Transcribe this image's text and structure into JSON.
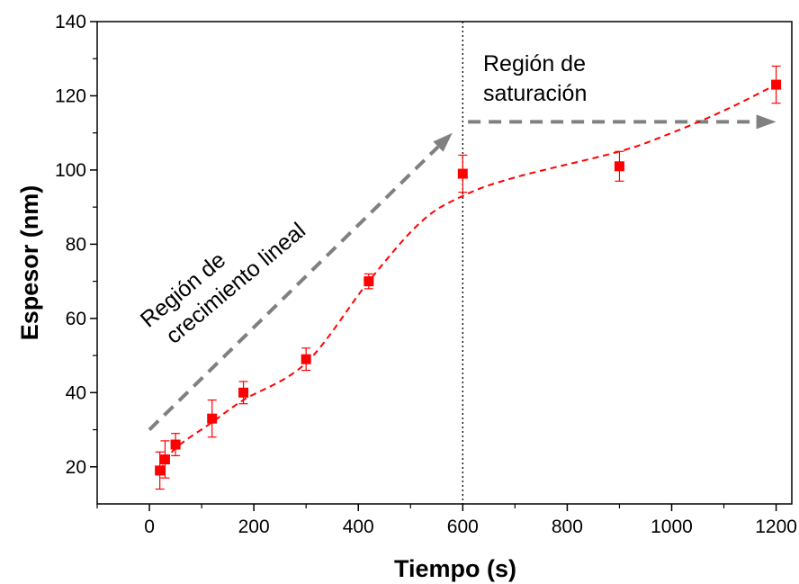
{
  "chart_data": {
    "type": "scatter",
    "title": "",
    "xlabel": "Tiempo (s)",
    "ylabel": "Espesor (nm)",
    "xlim": [
      -100,
      1230
    ],
    "ylim": [
      10,
      140
    ],
    "xticks": [
      0,
      200,
      400,
      600,
      800,
      1000,
      1200
    ],
    "yticks": [
      20,
      40,
      60,
      80,
      100,
      120,
      140
    ],
    "grid": false,
    "series": [
      {
        "color": "#ff0000",
        "marker": "square",
        "points": [
          {
            "x": 20,
            "y": 19,
            "err": 5
          },
          {
            "x": 30,
            "y": 22,
            "err": 5
          },
          {
            "x": 50,
            "y": 26,
            "err": 3
          },
          {
            "x": 120,
            "y": 33,
            "err": 5
          },
          {
            "x": 180,
            "y": 40,
            "err": 3
          },
          {
            "x": 300,
            "y": 49,
            "err": 3
          },
          {
            "x": 420,
            "y": 70,
            "err": 2
          },
          {
            "x": 600,
            "y": 99,
            "err": 5
          },
          {
            "x": 900,
            "y": 101,
            "err": 4
          },
          {
            "x": 1200,
            "y": 123,
            "err": 5
          }
        ]
      }
    ],
    "trend_line": {
      "color": "#ff0000",
      "style": "dashed",
      "points": [
        {
          "x": 20,
          "y": 19
        },
        {
          "x": 50,
          "y": 25
        },
        {
          "x": 120,
          "y": 32
        },
        {
          "x": 180,
          "y": 38
        },
        {
          "x": 300,
          "y": 48
        },
        {
          "x": 420,
          "y": 70
        },
        {
          "x": 520,
          "y": 86
        },
        {
          "x": 600,
          "y": 93
        },
        {
          "x": 700,
          "y": 98
        },
        {
          "x": 900,
          "y": 105
        },
        {
          "x": 1000,
          "y": 110
        },
        {
          "x": 1100,
          "y": 116
        },
        {
          "x": 1200,
          "y": 123
        }
      ]
    },
    "divider": {
      "x": 600,
      "style": "dotted",
      "color": "#000000"
    },
    "annotations": [
      {
        "lines": [
          "Región de",
          "crecimiento lineal"
        ]
      },
      {
        "lines": [
          "Región de",
          "saturación"
        ]
      }
    ],
    "arrows": [
      {
        "from": [
          0,
          30
        ],
        "to": [
          580,
          110
        ],
        "color": "#808080",
        "style": "dashed"
      },
      {
        "from": [
          610,
          113
        ],
        "to": [
          1200,
          113
        ],
        "color": "#808080",
        "style": "dashed"
      }
    ]
  }
}
